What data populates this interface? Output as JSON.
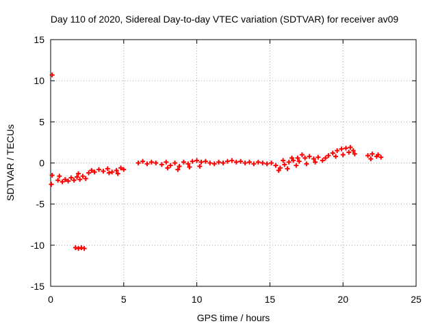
{
  "chart_data": {
    "type": "scatter",
    "title": "Day 110 of 2020, Sidereal Day-to-day VTEC variation (SDTVAR) for receiver av09",
    "xlabel": "GPS time / hours",
    "ylabel": "SDTVAR / TECUs",
    "xlim": [
      0,
      25
    ],
    "ylim": [
      -15,
      15
    ],
    "xticks": [
      0,
      5,
      10,
      15,
      20,
      25
    ],
    "yticks": [
      -15,
      -10,
      -5,
      0,
      5,
      10,
      15
    ],
    "xtick_labels": [
      "0",
      "5",
      "10",
      "15",
      "20",
      "25"
    ],
    "ytick_labels": [
      "-15",
      "-10",
      "-5",
      "0",
      "5",
      "10",
      "15"
    ],
    "grid": true,
    "marker_color": "#ff0000",
    "marker": "plus",
    "series": [
      {
        "name": "SDTVAR av09",
        "points": [
          [
            0.1,
            10.7
          ],
          [
            0.05,
            -2.6
          ],
          [
            0.1,
            -1.5
          ],
          [
            0.5,
            -2.1
          ],
          [
            0.6,
            -1.6
          ],
          [
            0.8,
            -2.3
          ],
          [
            1.0,
            -2.0
          ],
          [
            1.2,
            -2.2
          ],
          [
            1.4,
            -1.8
          ],
          [
            1.6,
            -2.1
          ],
          [
            1.8,
            -1.7
          ],
          [
            2.0,
            -2.0
          ],
          [
            2.2,
            -1.6
          ],
          [
            2.4,
            -1.9
          ],
          [
            1.9,
            -1.3
          ],
          [
            1.7,
            -10.3
          ],
          [
            1.9,
            -10.4
          ],
          [
            2.1,
            -10.3
          ],
          [
            2.3,
            -10.4
          ],
          [
            2.6,
            -1.2
          ],
          [
            2.8,
            -0.9
          ],
          [
            3.0,
            -1.1
          ],
          [
            3.3,
            -0.8
          ],
          [
            3.6,
            -1.0
          ],
          [
            3.9,
            -0.7
          ],
          [
            4.2,
            -1.1
          ],
          [
            4.5,
            -0.9
          ],
          [
            4.8,
            -0.6
          ],
          [
            5.0,
            -0.8
          ],
          [
            4.6,
            -1.3
          ],
          [
            4.0,
            -1.2
          ],
          [
            6.0,
            0.0
          ],
          [
            6.3,
            0.2
          ],
          [
            6.6,
            -0.1
          ],
          [
            6.9,
            0.1
          ],
          [
            7.2,
            0.0
          ],
          [
            7.6,
            -0.2
          ],
          [
            7.9,
            0.1
          ],
          [
            8.2,
            -0.3
          ],
          [
            8.5,
            0.0
          ],
          [
            8.8,
            -0.4
          ],
          [
            9.1,
            0.1
          ],
          [
            9.4,
            -0.1
          ],
          [
            9.7,
            0.2
          ],
          [
            10.0,
            0.3
          ],
          [
            10.3,
            0.1
          ],
          [
            10.6,
            0.2
          ],
          [
            10.9,
            0.0
          ],
          [
            11.2,
            -0.1
          ],
          [
            11.5,
            0.1
          ],
          [
            8.0,
            -0.6
          ],
          [
            8.7,
            -0.8
          ],
          [
            9.5,
            -0.5
          ],
          [
            10.2,
            -0.4
          ],
          [
            11.8,
            0.0
          ],
          [
            12.1,
            0.2
          ],
          [
            12.4,
            0.3
          ],
          [
            12.7,
            0.1
          ],
          [
            13.0,
            0.2
          ],
          [
            13.3,
            0.0
          ],
          [
            13.6,
            0.1
          ],
          [
            13.9,
            -0.1
          ],
          [
            14.2,
            0.1
          ],
          [
            14.5,
            0.0
          ],
          [
            14.8,
            -0.1
          ],
          [
            15.1,
            0.0
          ],
          [
            15.4,
            -0.3
          ],
          [
            15.7,
            -0.6
          ],
          [
            16.0,
            -0.2
          ],
          [
            16.3,
            0.1
          ],
          [
            16.6,
            0.3
          ],
          [
            16.9,
            0.6
          ],
          [
            17.2,
            1.0
          ],
          [
            17.4,
            0.6
          ],
          [
            17.7,
            0.8
          ],
          [
            18.0,
            0.5
          ],
          [
            18.3,
            0.7
          ],
          [
            15.6,
            -0.9
          ],
          [
            16.2,
            -0.7
          ],
          [
            16.8,
            -0.3
          ],
          [
            17.5,
            -0.1
          ],
          [
            18.1,
            0.1
          ],
          [
            18.6,
            0.3
          ],
          [
            15.9,
            0.3
          ],
          [
            16.5,
            0.6
          ],
          [
            17.0,
            0.2
          ],
          [
            18.8,
            0.6
          ],
          [
            19.0,
            0.9
          ],
          [
            19.3,
            1.2
          ],
          [
            19.6,
            1.5
          ],
          [
            19.9,
            1.7
          ],
          [
            20.2,
            1.8
          ],
          [
            20.5,
            1.9
          ],
          [
            20.7,
            1.5
          ],
          [
            20.8,
            1.1
          ],
          [
            19.5,
            0.8
          ],
          [
            20.0,
            1.0
          ],
          [
            20.4,
            1.3
          ],
          [
            21.7,
            0.9
          ],
          [
            22.0,
            1.1
          ],
          [
            22.3,
            0.8
          ],
          [
            22.6,
            0.7
          ],
          [
            21.9,
            0.5
          ],
          [
            22.4,
            1.0
          ]
        ]
      }
    ]
  }
}
